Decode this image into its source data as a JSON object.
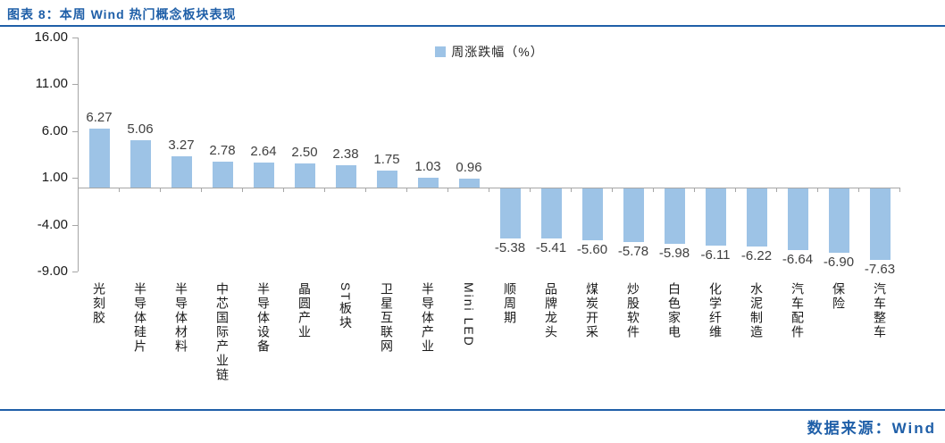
{
  "header": {
    "title": "图表 8：本周 Wind 热门概念板块表现"
  },
  "legend": {
    "label": "周涨跌幅（%）"
  },
  "footer": {
    "source": "数据来源：Wind"
  },
  "colors": {
    "accent_blue": "#1F5FA8",
    "bar_fill": "#9DC3E6",
    "axis_line": "#A6A6A6",
    "value_label": "#404040",
    "tick_label": "#1A1A1A"
  },
  "chart_data": {
    "type": "bar",
    "title": "本周Wind热门概念板块表现",
    "series_name": "周涨跌幅（%）",
    "categories": [
      "光刻胶",
      "半导体硅片",
      "半导体材料",
      "中芯国际产业链",
      "半导体设备",
      "晶圆产业",
      "ST板块",
      "卫星互联网",
      "半导体产业",
      "Mini LED",
      "顺周期",
      "品牌龙头",
      "煤炭开采",
      "炒股软件",
      "白色家电",
      "化学纤维",
      "水泥制造",
      "汽车配件",
      "保险",
      "汽车整车"
    ],
    "values": [
      6.27,
      5.06,
      3.27,
      2.78,
      2.64,
      2.5,
      2.38,
      1.75,
      1.03,
      0.96,
      -5.38,
      -5.41,
      -5.6,
      -5.78,
      -5.98,
      -6.11,
      -6.22,
      -6.64,
      -6.9,
      -7.63
    ],
    "ylim": [
      -9,
      16
    ],
    "yticks": [
      "16.00",
      "11.00",
      "6.00",
      "1.00",
      "-4.00",
      "-9.00"
    ],
    "grid": false,
    "legend_position": "top-center",
    "data_labels": true
  }
}
